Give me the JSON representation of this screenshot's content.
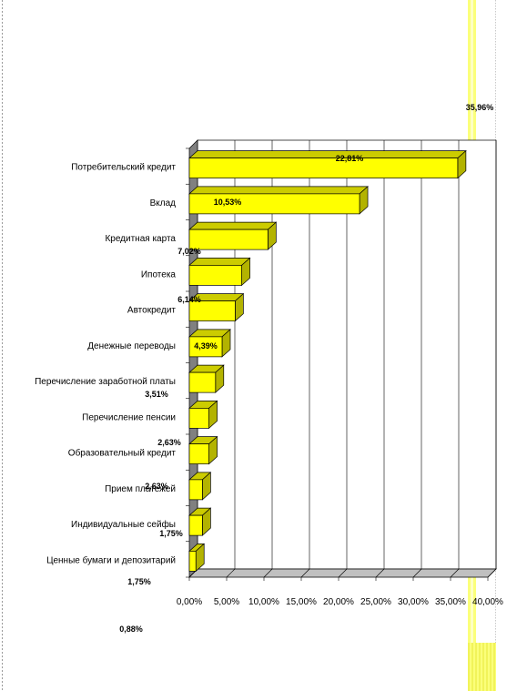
{
  "chart_data": {
    "type": "bar",
    "orientation": "horizontal",
    "title": "",
    "xlabel": "",
    "ylabel": "",
    "xlim": [
      0,
      40
    ],
    "ticks": [
      "0,00%",
      "5,00%",
      "10,00%",
      "15,00%",
      "20,00%",
      "25,00%",
      "30,00%",
      "35,00%",
      "40,00%"
    ],
    "categories": [
      "Потребительский кредит",
      "Вклад",
      "Кредитная карта",
      "Ипотека",
      "Автокредит",
      "Денежные переводы",
      "Перечисление заработной платы",
      "Перечисление пенсии",
      "Образовательный кредит",
      "Прием платежей",
      "Индивидуальные сейфы",
      "Ценные бумаги и депозитарий"
    ],
    "values": [
      35.96,
      22.81,
      10.53,
      7.02,
      6.14,
      4.39,
      3.51,
      2.63,
      2.63,
      1.75,
      1.75,
      0.88
    ],
    "data_labels": [
      "35,96%",
      "22,81%",
      "10,53%",
      "7,02%",
      "6,14%",
      "4,39%",
      "3,51%",
      "2,63%",
      "2,63%",
      "1,75%",
      "1,75%",
      "0,88%"
    ],
    "bar_color": "#ffff00",
    "grid": true,
    "legend": "none"
  }
}
